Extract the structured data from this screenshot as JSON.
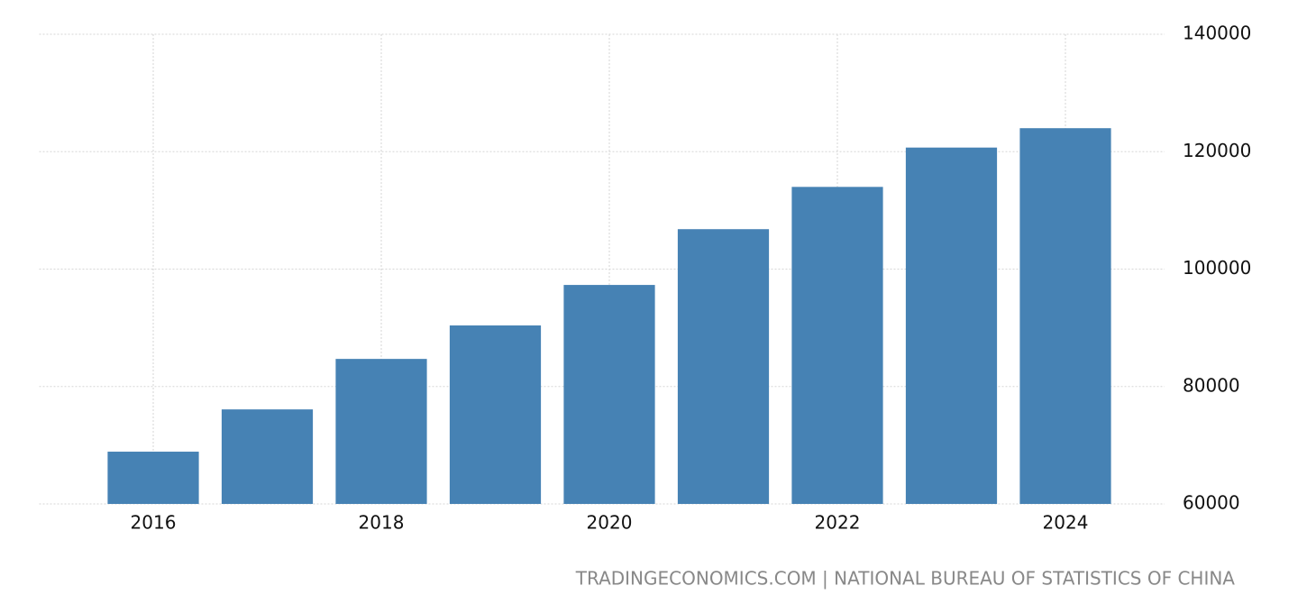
{
  "chart_data": {
    "type": "bar",
    "x": [
      2016,
      2017,
      2018,
      2019,
      2020,
      2021,
      2022,
      2023,
      2024
    ],
    "values": [
      68900,
      76100,
      84700,
      90400,
      97300,
      106800,
      114000,
      120700,
      124000
    ],
    "color": "#4682b4",
    "xlim": [
      2015,
      2025
    ],
    "xticks": [
      2016,
      2018,
      2020,
      2022,
      2024
    ],
    "ylim": [
      60000,
      140000
    ],
    "yticks": [
      60000,
      80000,
      100000,
      120000,
      140000
    ],
    "grid": true,
    "source": "TRADINGECONOMICS.COM | NATIONAL BUREAU OF STATISTICS OF CHINA"
  }
}
